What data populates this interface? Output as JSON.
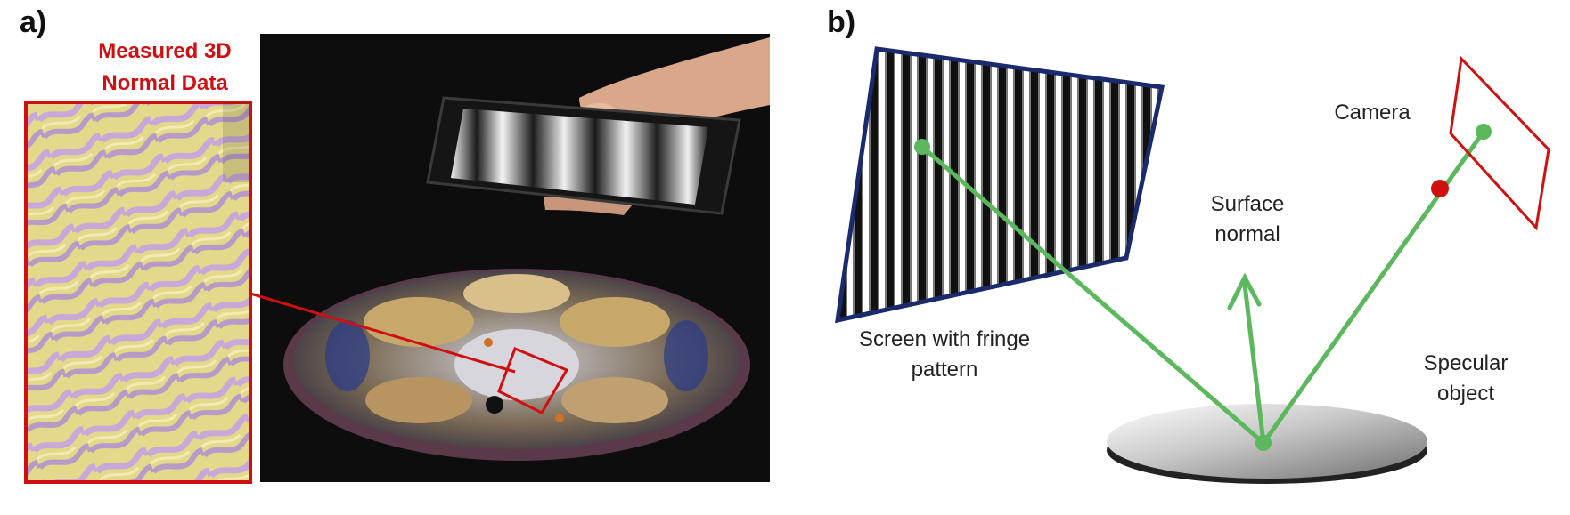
{
  "panel_a": {
    "label": "a)",
    "title_line1": "Measured 3D",
    "title_line2": "Normal Data",
    "colors": {
      "highlight": "#d01010",
      "background": "#0d0d0d"
    }
  },
  "panel_b": {
    "label": "b)",
    "screen_label_line1": "Screen with fringe",
    "screen_label_line2": "pattern",
    "normal_label_line1": "Surface",
    "normal_label_line2": "normal",
    "camera_label": "Camera",
    "object_label_line1": "Specular",
    "object_label_line2": "object",
    "colors": {
      "rays": "#5cb85c",
      "camera": "#d01010",
      "screen_border": "#1a2a6c"
    }
  }
}
